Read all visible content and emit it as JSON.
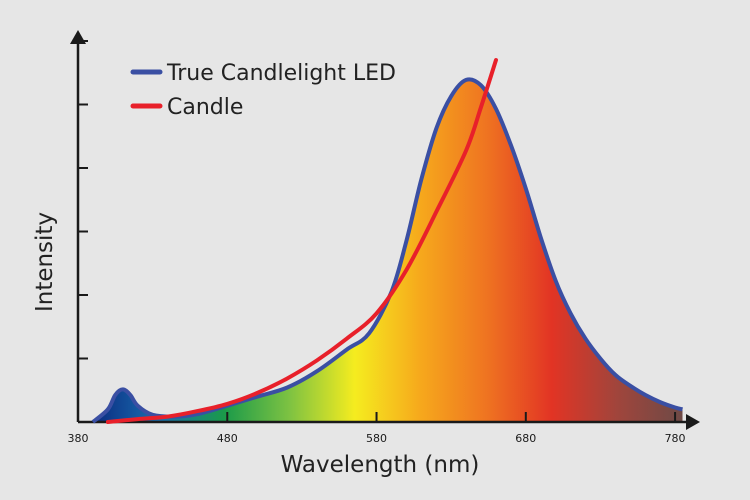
{
  "chart_data": {
    "type": "line",
    "title": "",
    "xlabel": "Wavelength (nm)",
    "ylabel": "Intensity",
    "xlim": [
      380,
      790
    ],
    "ylim": [
      0,
      1.0
    ],
    "x_ticks": [
      380,
      480,
      580,
      680,
      780
    ],
    "x_tick_labels": [
      "380",
      "480",
      "580",
      "680",
      "780"
    ],
    "y_tick_count": 6,
    "legend_position": "top-left",
    "series": [
      {
        "name": "True Candlelight LED",
        "color": "#3a4fa3",
        "filled": true,
        "points": [
          [
            390,
            0.0
          ],
          [
            400,
            0.035
          ],
          [
            405,
            0.075
          ],
          [
            410,
            0.09
          ],
          [
            415,
            0.075
          ],
          [
            420,
            0.045
          ],
          [
            430,
            0.02
          ],
          [
            445,
            0.015
          ],
          [
            460,
            0.022
          ],
          [
            480,
            0.045
          ],
          [
            500,
            0.07
          ],
          [
            520,
            0.095
          ],
          [
            540,
            0.14
          ],
          [
            560,
            0.2
          ],
          [
            575,
            0.245
          ],
          [
            590,
            0.36
          ],
          [
            600,
            0.5
          ],
          [
            610,
            0.67
          ],
          [
            620,
            0.81
          ],
          [
            630,
            0.9
          ],
          [
            640,
            0.945
          ],
          [
            650,
            0.93
          ],
          [
            660,
            0.865
          ],
          [
            670,
            0.765
          ],
          [
            680,
            0.645
          ],
          [
            690,
            0.51
          ],
          [
            700,
            0.39
          ],
          [
            710,
            0.3
          ],
          [
            720,
            0.23
          ],
          [
            730,
            0.175
          ],
          [
            740,
            0.13
          ],
          [
            750,
            0.1
          ],
          [
            760,
            0.075
          ],
          [
            770,
            0.055
          ],
          [
            780,
            0.04
          ],
          [
            785,
            0.035
          ]
        ]
      },
      {
        "name": "Candle",
        "color": "#e8202a",
        "filled": false,
        "points": [
          [
            400,
            0.0
          ],
          [
            420,
            0.008
          ],
          [
            440,
            0.015
          ],
          [
            460,
            0.03
          ],
          [
            480,
            0.05
          ],
          [
            500,
            0.08
          ],
          [
            520,
            0.12
          ],
          [
            540,
            0.17
          ],
          [
            560,
            0.23
          ],
          [
            580,
            0.3
          ],
          [
            600,
            0.42
          ],
          [
            620,
            0.58
          ],
          [
            640,
            0.75
          ],
          [
            650,
            0.87
          ],
          [
            660,
            1.0
          ]
        ]
      }
    ],
    "fill_gradient": [
      "#0a2a80",
      "#1a6fb0",
      "#1a9a4a",
      "#7dc242",
      "#f5ec1f",
      "#f6a81c",
      "#ef7421",
      "#e23424",
      "#a0453c",
      "#6e4a46"
    ]
  }
}
